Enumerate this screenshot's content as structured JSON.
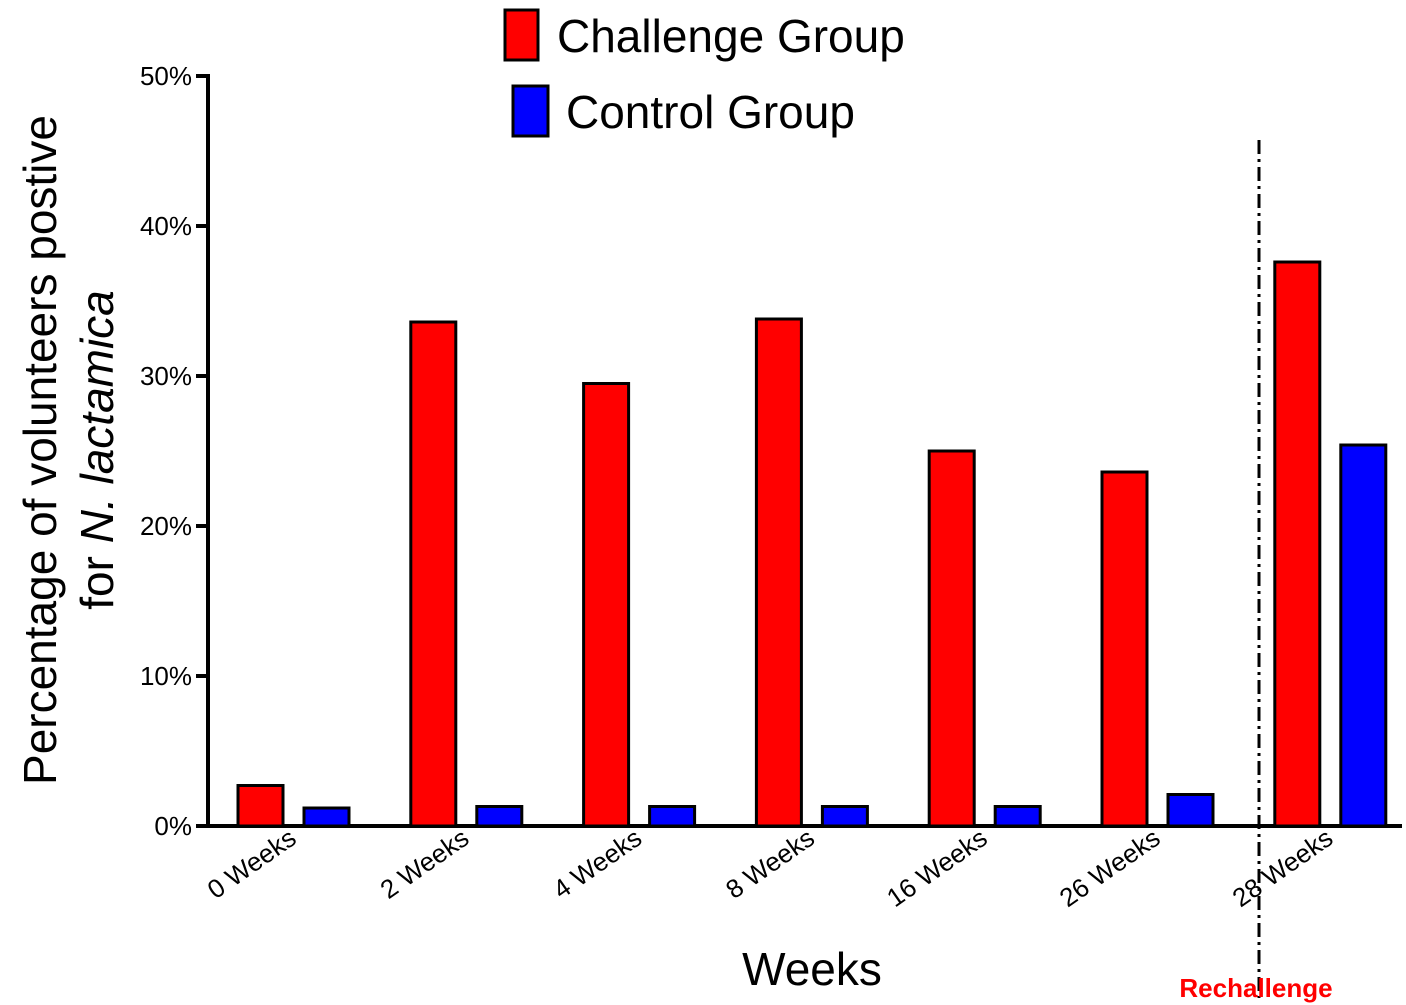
{
  "chart_data": {
    "type": "bar",
    "categories": [
      "0 Weeks",
      "2 Weeks",
      "4 Weeks",
      "8 Weeks",
      "16 Weeks",
      "26 Weeks",
      "28 Weeks"
    ],
    "series": [
      {
        "name": "Challenge Group",
        "color": "#ff0000",
        "values": [
          2.7,
          33.6,
          29.5,
          33.8,
          25.0,
          23.6,
          37.6
        ]
      },
      {
        "name": "Control Group",
        "color": "#0000ff",
        "values": [
          1.2,
          1.3,
          1.3,
          1.3,
          1.3,
          2.1,
          25.4
        ]
      }
    ],
    "xlabel": "Weeks",
    "ylabel_line1": "Percentage of volunteers postive",
    "ylabel_line2_prefix": "for ",
    "ylabel_line2_italic": "N. lactamica",
    "ylim": [
      0,
      50
    ],
    "yticks": [
      "0%",
      "10%",
      "20%",
      "30%",
      "40%",
      "50%"
    ],
    "annotation": {
      "text": "Rechallenge",
      "color": "#ff0000",
      "between_categories": [
        "26 Weeks",
        "28 Weeks"
      ]
    },
    "legend_position": "top-center",
    "grid": false
  }
}
